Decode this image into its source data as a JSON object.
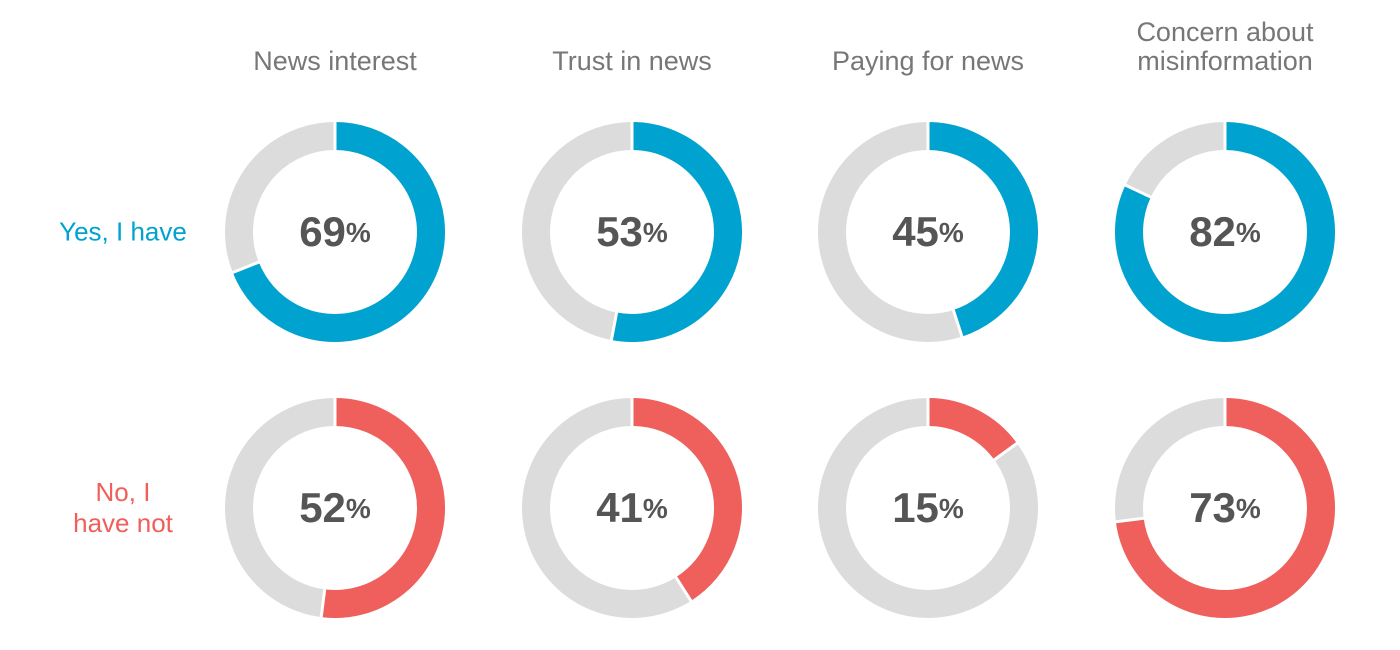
{
  "chart_data": {
    "type": "donut",
    "categories": [
      "News interest",
      "Trust in news",
      "Paying for news",
      "Concern about misinformation"
    ],
    "track_color": "#dcdcdc",
    "series": [
      {
        "name": "Yes, I have",
        "color": "#00a3d0",
        "values": [
          69,
          53,
          45,
          82
        ],
        "value_labels": [
          "69%",
          "53%",
          "45%",
          "82%"
        ]
      },
      {
        "name": "No, I have not",
        "color": "#ef5f5b",
        "values": [
          52,
          41,
          15,
          73
        ],
        "value_labels": [
          "52%",
          "41%",
          "15%",
          "73%"
        ]
      }
    ]
  }
}
